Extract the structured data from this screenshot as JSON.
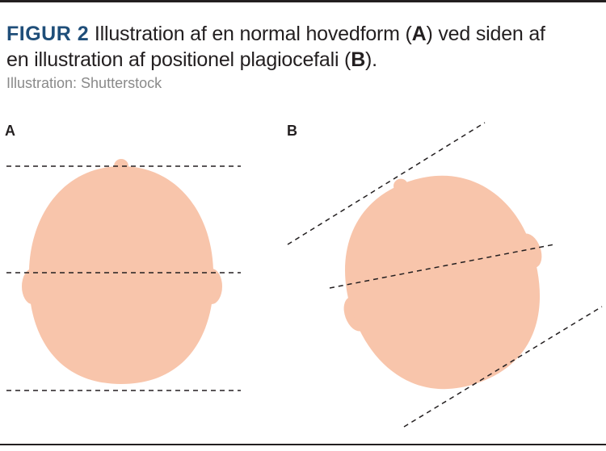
{
  "caption": {
    "figure_label": "FIGUR 2",
    "text_part1": " Illustration af en normal hovedform (",
    "label_a": "A",
    "text_part2": ") ved siden af en illustration af positionel plagiocefali (",
    "label_b": "B",
    "text_part3": ")."
  },
  "credit": "Illustration: Shutterstock",
  "panels": [
    {
      "label": "A"
    },
    {
      "label": "B"
    }
  ],
  "colors": {
    "head_fill": "#f8c5ab",
    "figure_label": "#1f4e79",
    "line": "#231f20"
  }
}
